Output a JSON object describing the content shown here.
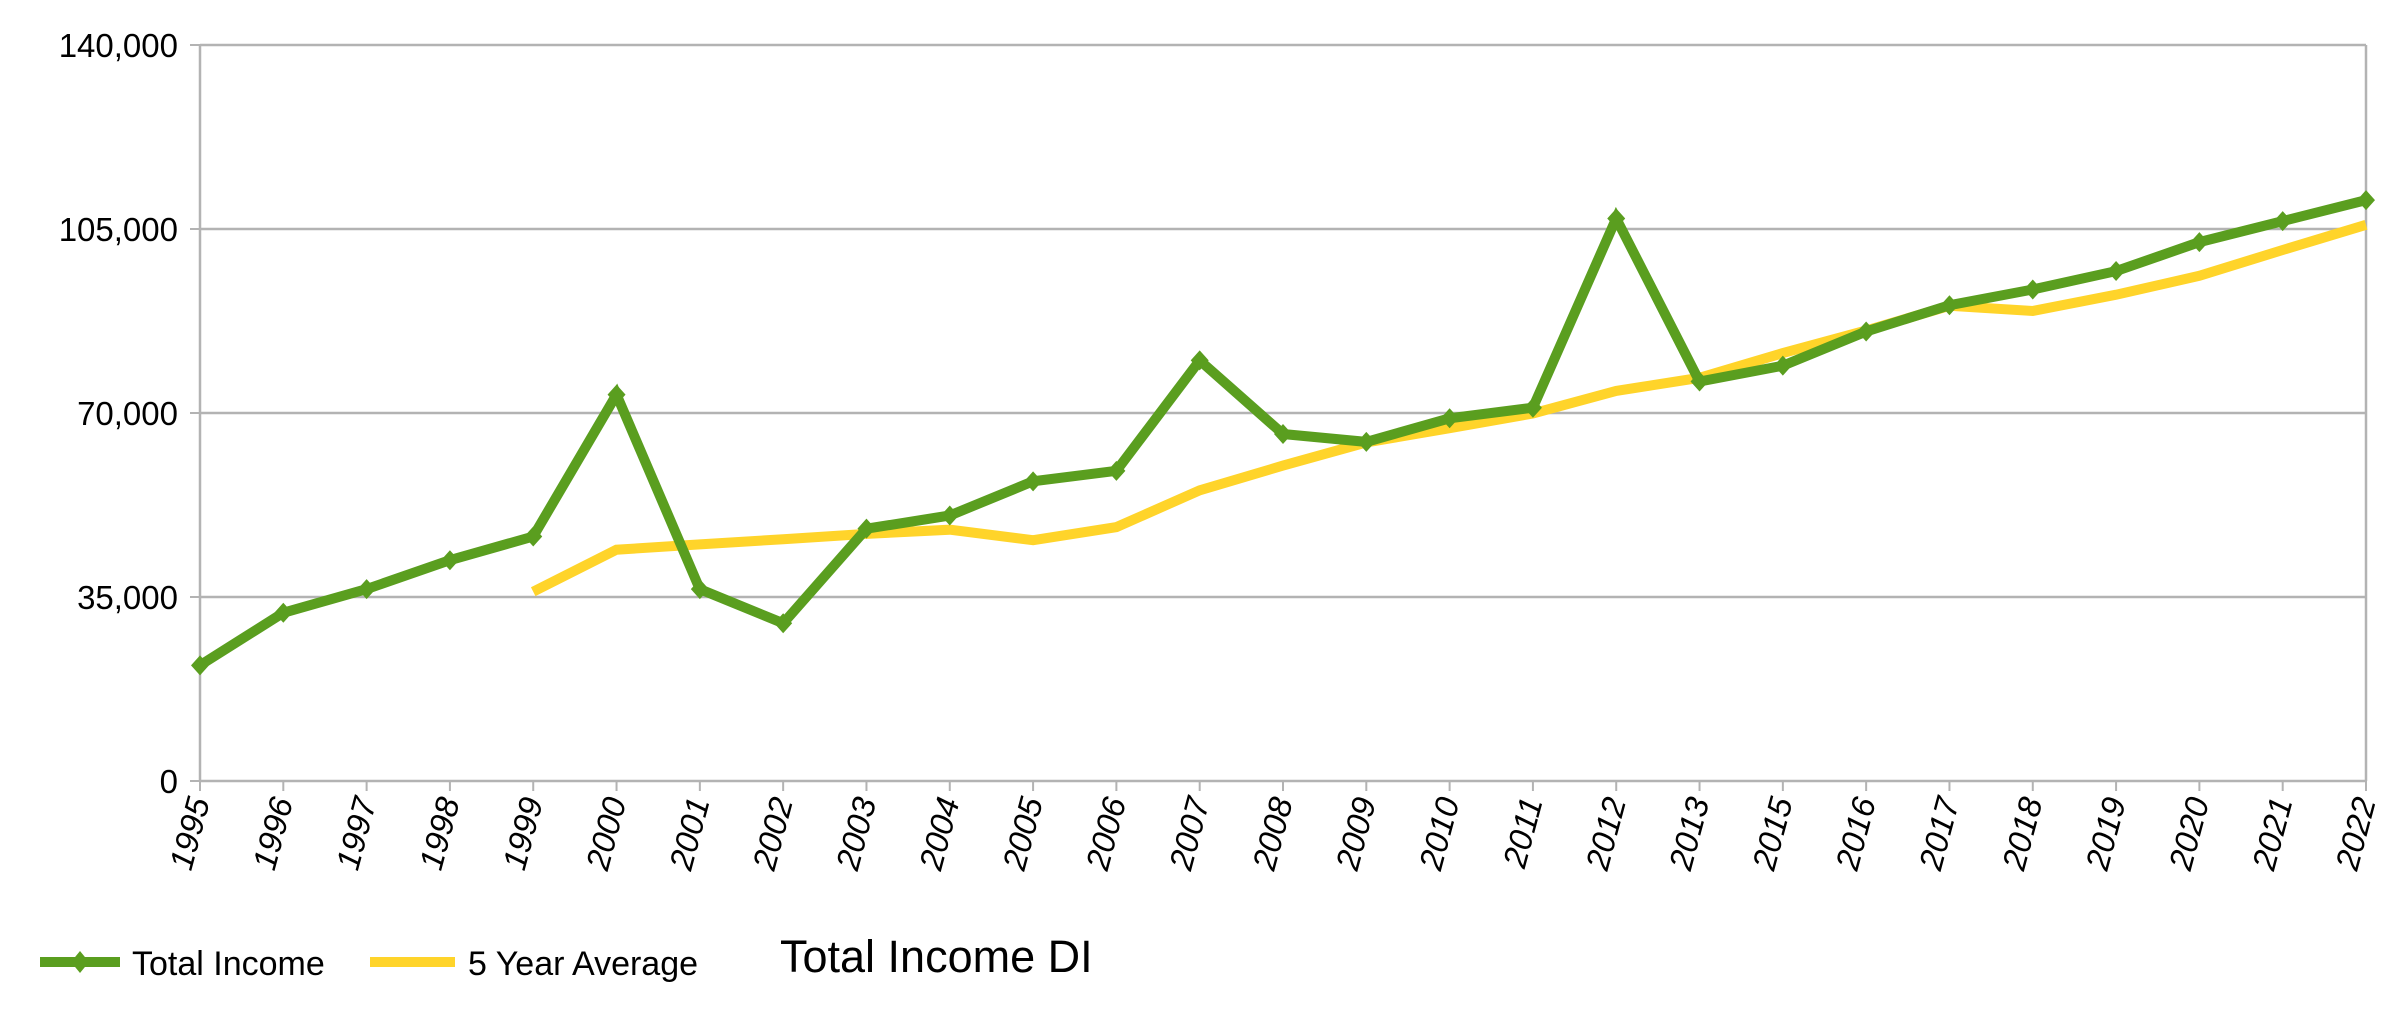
{
  "chart_data": {
    "type": "line",
    "title": "Total Income DI",
    "xlabel": "",
    "ylabel": "",
    "categories": [
      "1995",
      "1996",
      "1997",
      "1998",
      "1999",
      "2000",
      "2001",
      "2002",
      "2003",
      "2004",
      "2005",
      "2006",
      "2007",
      "2008",
      "2009",
      "2010",
      "2011",
      "2012",
      "2013",
      "2015",
      "2016",
      "2017",
      "2018",
      "2019",
      "2020",
      "2021",
      "2022"
    ],
    "series": [
      {
        "name": "Total Income",
        "color": "#5a9e1f",
        "marker": "diamond",
        "values": [
          22000,
          32000,
          36500,
          42000,
          46500,
          73500,
          36500,
          30000,
          48000,
          50500,
          57000,
          59000,
          80000,
          66000,
          64500,
          69000,
          71000,
          107000,
          76000,
          79000,
          85500,
          90500,
          93500,
          97000,
          102500,
          106500,
          110500
        ]
      },
      {
        "name": "5 Year Average",
        "color": "#ffd42a",
        "marker": "none",
        "values": [
          null,
          null,
          null,
          null,
          36000,
          44000,
          45000,
          46000,
          47000,
          47800,
          45800,
          48300,
          55300,
          60000,
          64400,
          67100,
          69900,
          74200,
          76700,
          81400,
          85700,
          90400,
          89400,
          92500,
          96100,
          101000,
          105800
        ]
      }
    ],
    "ylim": [
      0,
      140000
    ],
    "yticks": [
      "0",
      "35,000",
      "70,000",
      "105,000",
      "140,000"
    ],
    "ytick_values": [
      0,
      35000,
      70000,
      105000,
      140000
    ],
    "grid": true,
    "legend_position": "bottom-left"
  }
}
